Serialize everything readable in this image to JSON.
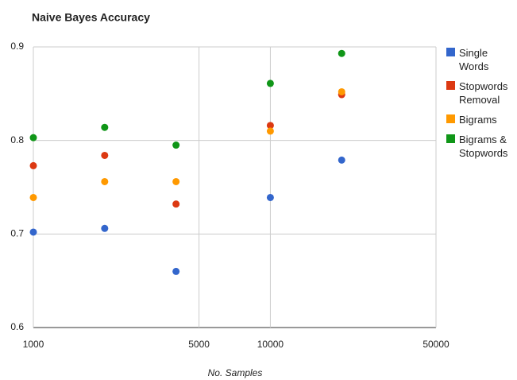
{
  "chart_data": {
    "type": "scatter",
    "title": "Naive Bayes Accuracy",
    "xlabel": "No. Samples",
    "x": [
      1000,
      2000,
      4000,
      10000,
      20000
    ],
    "series": [
      {
        "name": "Single Words",
        "color": "#3366cc",
        "values": [
          0.702,
          0.706,
          0.66,
          0.739,
          0.779
        ]
      },
      {
        "name": "Stopwords Removal",
        "color": "#dc3912",
        "values": [
          0.773,
          0.784,
          0.732,
          0.816,
          0.849
        ]
      },
      {
        "name": "Bigrams",
        "color": "#ff9900",
        "values": [
          0.739,
          0.756,
          0.756,
          0.81,
          0.852
        ]
      },
      {
        "name": "Bigrams & Stopwords",
        "color": "#109618",
        "values": [
          0.803,
          0.814,
          0.795,
          0.861,
          0.893
        ]
      }
    ],
    "xlim": [
      1000,
      50000
    ],
    "xticks": [
      1000,
      5000,
      10000,
      50000
    ],
    "xscale": "log",
    "ylim": [
      0.6,
      0.9
    ],
    "yticks": [
      0.6,
      0.7,
      0.8,
      0.9
    ],
    "grid": true,
    "legend": "right"
  }
}
